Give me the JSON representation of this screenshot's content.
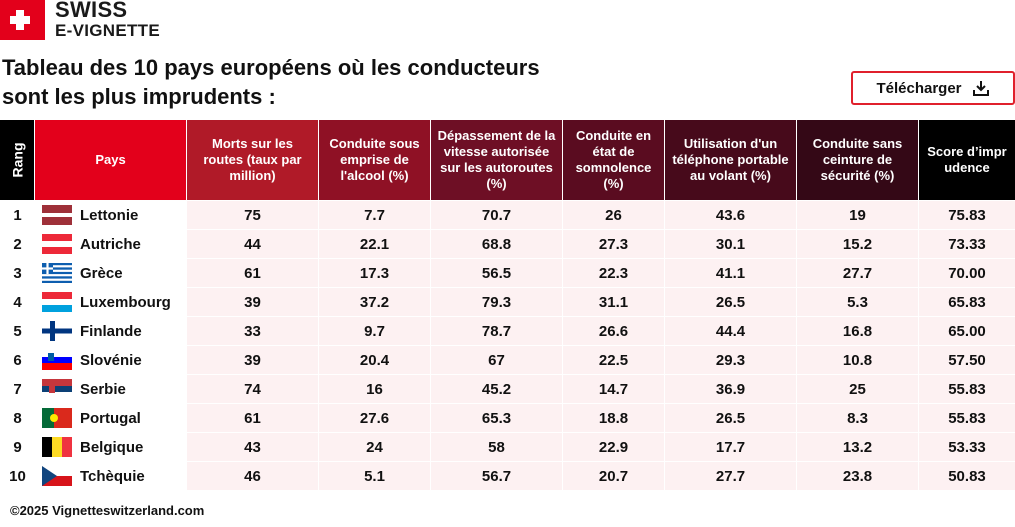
{
  "logo": {
    "line1": "SWISS",
    "line2": "E-VIGNETTE"
  },
  "header": {
    "title_line1": "Tableau des 10 pays européens où les conducteurs",
    "title_line2": "sont les plus imprudents :",
    "button": "Télécharger"
  },
  "table": {
    "columns": [
      "Rang",
      "Pays",
      "Morts sur les routes (taux par million)",
      "Conduite sous emprise de l'alcool (%)",
      "Dépassement de la vitesse autorisée sur les autoroutes (%)",
      "Conduite en état de somnolence (%)",
      "Utilisation d'un téléphone portable au volant (%)",
      "Conduite sans ceinture de sécurité (%)",
      "Score d’imprudence"
    ],
    "rows": [
      [
        "1",
        "Lettonie",
        "75",
        "7.7",
        "70.7",
        "26",
        "43.6",
        "19",
        "75.83"
      ],
      [
        "2",
        "Autriche",
        "44",
        "22.1",
        "68.8",
        "27.3",
        "30.1",
        "15.2",
        "73.33"
      ],
      [
        "3",
        "Grèce",
        "61",
        "17.3",
        "56.5",
        "22.3",
        "41.1",
        "27.7",
        "70.00"
      ],
      [
        "4",
        "Luxembourg",
        "39",
        "37.2",
        "79.3",
        "31.1",
        "26.5",
        "5.3",
        "65.83"
      ],
      [
        "5",
        "Finlande",
        "33",
        "9.7",
        "78.7",
        "26.6",
        "44.4",
        "16.8",
        "65.00"
      ],
      [
        "6",
        "Slovénie",
        "39",
        "20.4",
        "67",
        "22.5",
        "29.3",
        "10.8",
        "57.50"
      ],
      [
        "7",
        "Serbie",
        "74",
        "16",
        "45.2",
        "14.7",
        "36.9",
        "25",
        "55.83"
      ],
      [
        "8",
        "Portugal",
        "61",
        "27.6",
        "65.3",
        "18.8",
        "26.5",
        "8.3",
        "55.83"
      ],
      [
        "9",
        "Belgique",
        "43",
        "24",
        "58",
        "22.9",
        "17.7",
        "13.2",
        "53.33"
      ],
      [
        "10",
        "Tchèquie",
        "46",
        "5.1",
        "56.7",
        "20.7",
        "27.7",
        "23.8",
        "50.83"
      ]
    ]
  },
  "footer": {
    "text": "©2025 Vignetteswitzerland.com"
  }
}
